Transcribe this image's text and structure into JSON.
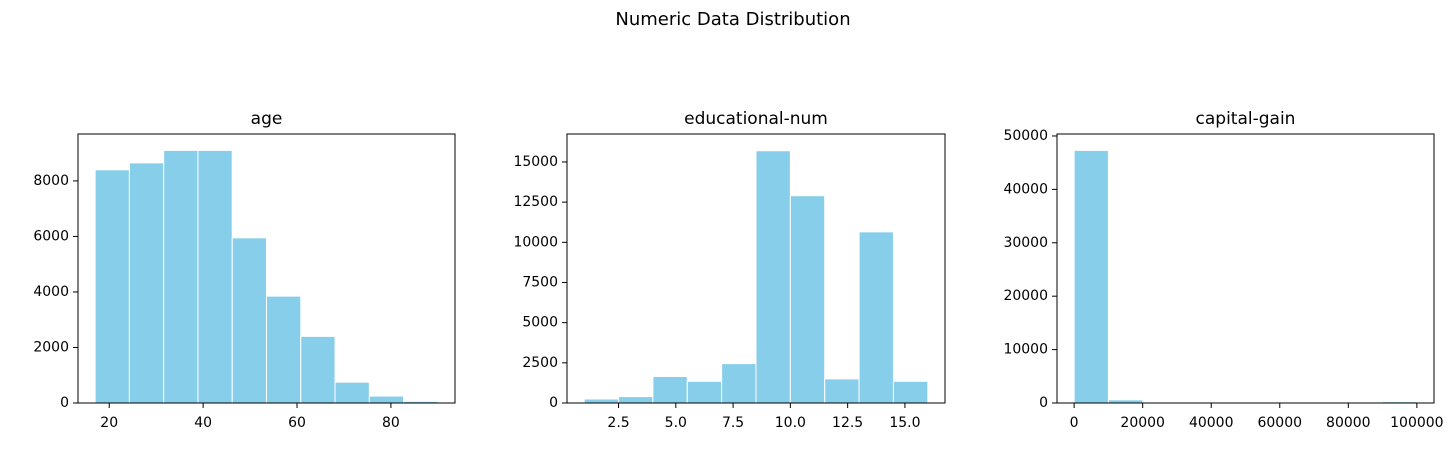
{
  "title": "Numeric Data Distribution",
  "chart_data": [
    {
      "type": "histogram",
      "title": "age",
      "color": "#87ceeb",
      "edgecolor": "#ffffff",
      "bins": [
        17,
        24.3,
        31.6,
        38.9,
        46.2,
        53.5,
        60.8,
        68.1,
        75.4,
        82.7,
        90
      ],
      "values": [
        8400,
        8650,
        9100,
        9100,
        5950,
        3850,
        2400,
        750,
        250,
        60
      ],
      "xlim": [
        13.35,
        93.65
      ],
      "xticks": [
        20,
        40,
        60,
        80
      ],
      "ylim": [
        0,
        9690
      ],
      "yticks": [
        0,
        2000,
        4000,
        6000,
        8000
      ]
    },
    {
      "type": "histogram",
      "title": "educational-num",
      "color": "#87ceeb",
      "edgecolor": "#ffffff",
      "bins": [
        1,
        2.5,
        4,
        5.5,
        7,
        8.5,
        10,
        11.5,
        13,
        14.5,
        16
      ],
      "values": [
        250,
        400,
        1650,
        1350,
        2450,
        15700,
        12900,
        1500,
        10650,
        1350
      ],
      "xlim": [
        0.25,
        16.75
      ],
      "xticks": [
        2.5,
        {
          "value": 5,
          "label": "5.0"
        },
        7.5,
        {
          "value": 10,
          "label": "10.0"
        },
        12.5,
        {
          "value": 15,
          "label": "15.0"
        }
      ],
      "ylim": [
        0,
        16740
      ],
      "yticks": [
        0,
        2500,
        5000,
        7500,
        10000,
        12500,
        15000
      ]
    },
    {
      "type": "histogram",
      "title": "capital-gain",
      "color": "#87ceeb",
      "edgecolor": "#ffffff",
      "bins": [
        0,
        9999.9,
        19999.8,
        29999.7,
        39999.6,
        49999.5,
        59999.4,
        69999.3,
        79999.2,
        89999.1,
        99999
      ],
      "values": [
        47300,
        600,
        0,
        0,
        0,
        0,
        0,
        0,
        0,
        250
      ],
      "xlim": [
        -5000,
        105000
      ],
      "xticks": [
        0,
        20000,
        40000,
        60000,
        80000,
        100000
      ],
      "ylim": [
        0,
        50370
      ],
      "yticks": [
        0,
        10000,
        20000,
        30000,
        40000,
        50000
      ]
    }
  ]
}
